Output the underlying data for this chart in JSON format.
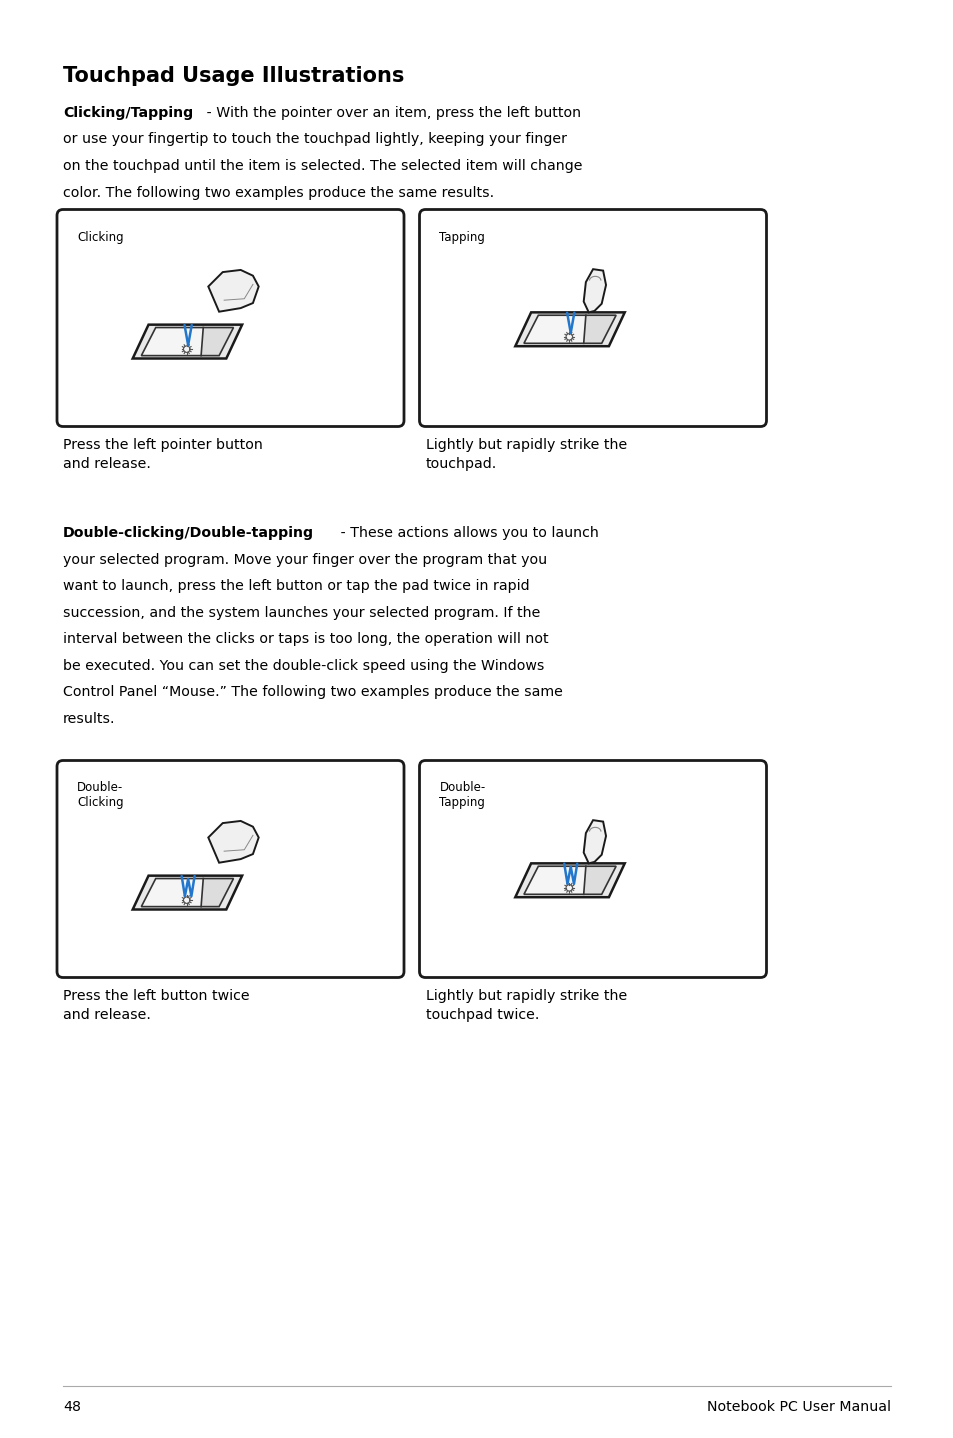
{
  "page_width": 9.54,
  "page_height": 14.38,
  "dpi": 100,
  "bg_color": "#ffffff",
  "title": "Touchpad Usage Illustrations",
  "title_fontsize": 15,
  "body_fontsize": 10.2,
  "small_label_fontsize": 8.5,
  "footer_page": "48",
  "footer_right": "Notebook PC User Manual",
  "s1_bold": "Clicking/Tapping",
  "s1_normal": " - With the pointer over an item, press the left button or use your fingertip to touch the touchpad lightly, keeping your finger on the touchpad until the item is selected. The selected item will change color. The following two examples produce the same results.",
  "box1_label": "Clicking",
  "box2_label": "Tapping",
  "cap1": "Press the left pointer button\nand release.",
  "cap2": "Lightly but rapidly strike the\ntouchpad.",
  "s2_bold": "Double-clicking/Double-tapping",
  "s2_normal": " - These actions allows you to launch your selected program. Move your finger over the program that you want to launch, press the left button or tap the pad twice in rapid succession, and the system launches your selected program. If the interval between the clicks or taps is too long, the operation will not be executed. You can set the double-click speed using the Windows Control Panel “Mouse.” The following two examples produce the same results.",
  "box3_label": "Double-\nClicking",
  "box4_label": "Double-\nTapping",
  "cap3": "Press the left button twice\nand release.",
  "cap4": "Lightly but rapidly strike the\ntouchpad twice.",
  "ml": 0.63,
  "mr": 0.63,
  "text_color": "#000000",
  "blue_color": "#2277cc",
  "gray_light": "#cccccc",
  "gray_mid": "#999999"
}
